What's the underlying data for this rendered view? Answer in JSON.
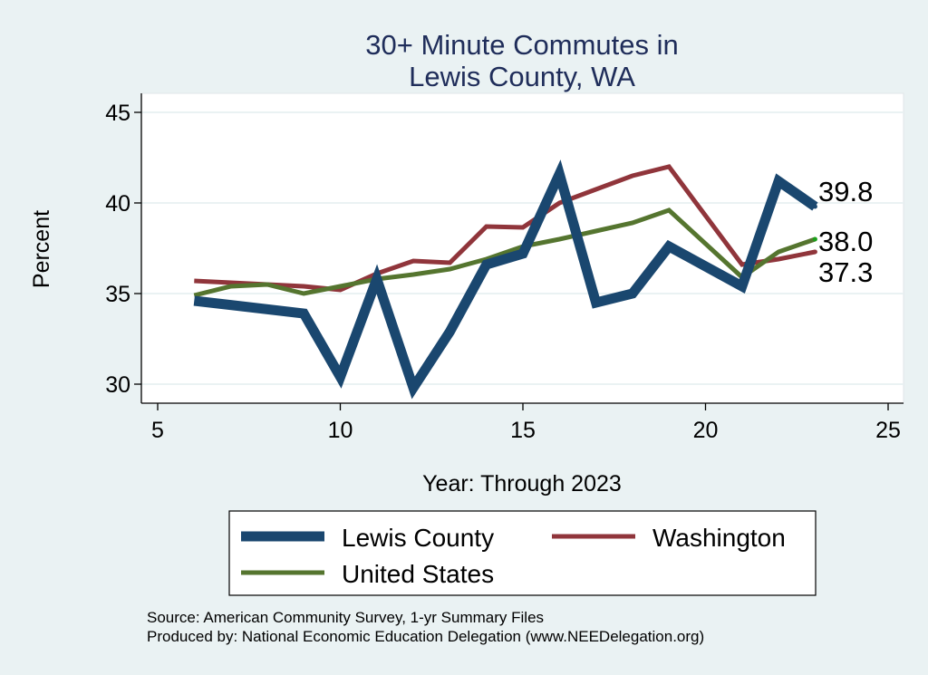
{
  "chart_data": {
    "type": "line",
    "title": [
      "30+ Minute Commutes in",
      "Lewis County, WA"
    ],
    "xlabel": "Year: Through 2023",
    "ylabel": "Percent",
    "xlim": [
      5,
      25
    ],
    "ylim": [
      29.5,
      45.8
    ],
    "xticks": [
      5,
      10,
      15,
      20,
      25
    ],
    "yticks": [
      30,
      35,
      40,
      45
    ],
    "grid": true,
    "legend_position": "bottom",
    "series": [
      {
        "name": "Lewis County",
        "color": "#1a476f",
        "x": [
          6,
          9,
          10,
          11,
          12,
          13,
          14,
          15,
          16,
          17,
          18,
          19,
          21,
          22,
          23
        ],
        "values": [
          34.6,
          33.9,
          30.4,
          35.8,
          29.8,
          32.9,
          36.6,
          37.2,
          41.6,
          34.5,
          35.0,
          37.6,
          35.4,
          41.2,
          39.8
        ],
        "end_label": "39.8"
      },
      {
        "name": "Washington",
        "color": "#90353b",
        "x": [
          6,
          7,
          8,
          9,
          10,
          11,
          12,
          13,
          14,
          15,
          16,
          17,
          18,
          19,
          21,
          22,
          23
        ],
        "values": [
          35.7,
          35.6,
          35.5,
          35.4,
          35.2,
          36.1,
          36.8,
          36.7,
          38.7,
          38.65,
          40.0,
          40.75,
          41.5,
          42.0,
          36.6,
          36.9,
          37.3
        ],
        "end_label": "37.3"
      },
      {
        "name": "United States",
        "color": "#55752f",
        "x": [
          6,
          7,
          8,
          9,
          10,
          11,
          12,
          13,
          14,
          15,
          16,
          17,
          18,
          19,
          21,
          22,
          23
        ],
        "values": [
          34.9,
          35.4,
          35.5,
          35.0,
          35.4,
          35.8,
          36.05,
          36.35,
          36.9,
          37.6,
          38.0,
          38.45,
          38.9,
          39.6,
          35.9,
          37.3,
          38.0
        ],
        "end_label": "38.0"
      }
    ],
    "notes": [
      "Source: American Community Survey, 1-yr Summary Files",
      "Produced by: National Economic Education Delegation (www.NEEDelegation.org)"
    ]
  }
}
